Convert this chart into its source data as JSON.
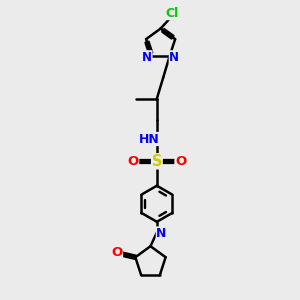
{
  "bg_color": "#ebebeb",
  "bond_color": "#000000",
  "bond_width": 1.8,
  "atom_colors": {
    "C": "#000000",
    "N": "#0000ff",
    "O": "#ff0000",
    "S": "#cccc00",
    "Cl": "#00cc00",
    "H": "#708090"
  },
  "font_size": 8.5,
  "figsize": [
    3.0,
    3.0
  ],
  "dpi": 100,
  "xlim": [
    0,
    10
  ],
  "ylim": [
    0,
    14
  ]
}
